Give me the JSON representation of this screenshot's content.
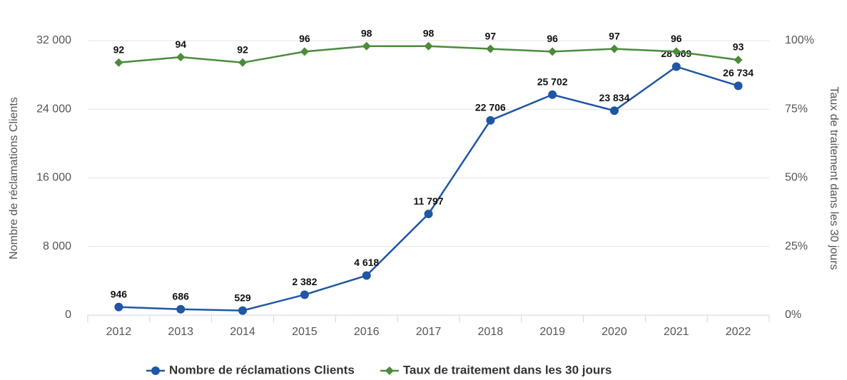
{
  "chart_data": {
    "type": "line",
    "categories": [
      "2012",
      "2013",
      "2014",
      "2015",
      "2016",
      "2017",
      "2018",
      "2019",
      "2020",
      "2021",
      "2022"
    ],
    "series": [
      {
        "name": "Nombre de réclamations Clients",
        "color": "#1f57a3",
        "marker": "circle",
        "values": [
          946,
          686,
          529,
          2382,
          4618,
          11797,
          22706,
          25702,
          23834,
          28969,
          26734
        ],
        "value_labels": [
          "946",
          "686",
          "529",
          "2 382",
          "4 618",
          "11 797",
          "22 706",
          "25 702",
          "23 834",
          "28 969",
          "26 734"
        ]
      },
      {
        "name": "Taux de traitement dans les 30 jours",
        "color": "#4b8b3b",
        "marker": "diamond",
        "axis": "y2",
        "values": [
          92,
          94,
          92,
          96,
          98,
          98,
          97,
          96,
          97,
          96,
          93
        ]
      }
    ],
    "ylabel": "Nombre de réclamations Clients",
    "y2label": "Taux de traitement dans les 30 jours",
    "ylim": [
      0,
      32000
    ],
    "yticks": [
      0,
      {
        "value": 8000,
        "label": "8 000"
      },
      {
        "value": 16000,
        "label": "16 000"
      },
      {
        "value": 24000,
        "label": "24 000"
      },
      {
        "value": 32000,
        "label": "32 000"
      }
    ],
    "y2lim": [
      0,
      100
    ],
    "y2ticks": [
      {
        "value": 0,
        "label": "0%"
      },
      {
        "value": 25,
        "label": "25%"
      },
      {
        "value": 50,
        "label": "50%"
      },
      {
        "value": 75,
        "label": "75%"
      },
      {
        "value": 100,
        "label": "100%"
      }
    ],
    "grid": true,
    "legend": "bottom"
  }
}
